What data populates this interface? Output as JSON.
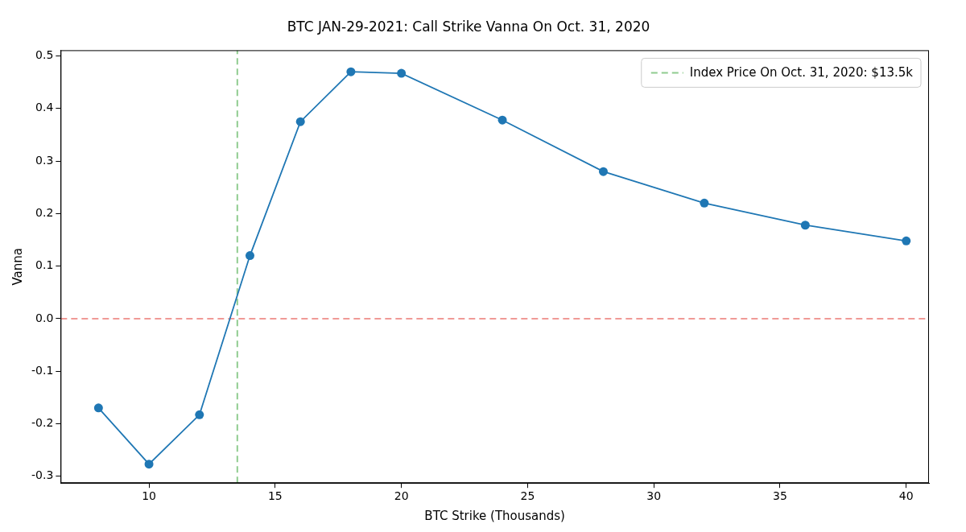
{
  "chart_data": {
    "type": "line",
    "title": "BTC JAN-29-2021: Call Strike Vanna On Oct. 31, 2020",
    "x_label": "BTC Strike (Thousands)",
    "y_label": "Vanna",
    "x": [
      8,
      10,
      12,
      14,
      16,
      18,
      20,
      24,
      28,
      32,
      36,
      40
    ],
    "values": [
      -0.17,
      -0.277,
      -0.183,
      0.12,
      0.375,
      0.47,
      0.467,
      0.378,
      0.28,
      0.22,
      0.178,
      0.148
    ],
    "color": "#1f77b4",
    "marker": "circle",
    "line_style": "solid",
    "xlim": [
      6.5,
      40.9
    ],
    "ylim": [
      -0.313,
      0.511
    ],
    "xticks": [
      10,
      15,
      20,
      25,
      30,
      35,
      40
    ],
    "yticks": [
      -0.3,
      -0.2,
      -0.1,
      {
        "value": 0,
        "label": "0.0"
      },
      0.1,
      0.2,
      0.3,
      0.4,
      0.5
    ],
    "grid": false,
    "legend": "upper right",
    "reference_lines": [
      {
        "axis": "x",
        "value": 13.5,
        "name": "Index Price On Oct. 31, 2020: $13.5k",
        "color": "#8fcc8f",
        "line_style": "dashed"
      },
      {
        "axis": "y",
        "value": 0,
        "color": "#f09a96",
        "line_style": "dashed"
      }
    ]
  }
}
